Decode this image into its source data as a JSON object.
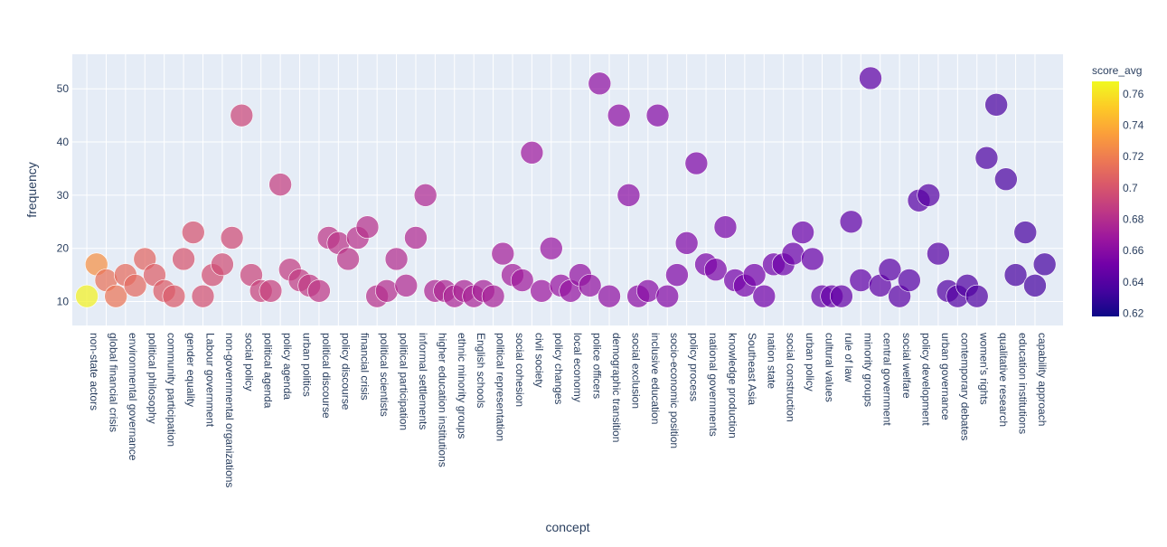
{
  "chart_data": {
    "type": "scatter",
    "xlabel": "concept",
    "ylabel": "frequency",
    "ylim": [
      5.5,
      56.5
    ],
    "yticks": [
      10,
      20,
      30,
      40,
      50
    ],
    "grid": true,
    "colorbar": {
      "title": "score_avg",
      "range": [
        0.618,
        0.768
      ],
      "ticks": [
        0.62,
        0.64,
        0.66,
        0.68,
        0.7,
        0.72,
        0.74,
        0.76
      ],
      "tick_labels": [
        "0.62",
        "0.64",
        "0.66",
        "0.68",
        "0.7",
        "0.72",
        "0.74",
        "0.76"
      ],
      "colorscale": [
        "#0d0887",
        "#46039f",
        "#7201a8",
        "#9c179e",
        "#bd3786",
        "#d8576b",
        "#ed7953",
        "#fb9f3a",
        "#fdca26",
        "#f0f921"
      ]
    },
    "categories": [
      "non-state actors",
      "global financial crisis",
      "environmental governance",
      "political philosophy",
      "community participation",
      "gender equality",
      "Labour government",
      "non-governmental organizations",
      "social policy",
      "political agenda",
      "policy agenda",
      "urban politics",
      "political discourse",
      "policy discourse",
      "financial crisis",
      "political scientists",
      "political participation",
      "informal settlements",
      "higher education institutions",
      "ethnic minority groups",
      "English schools",
      "political representation",
      "social cohesion",
      "civil society",
      "policy changes",
      "local economy",
      "police officers",
      "demographic transition",
      "social exclusion",
      "inclusive education",
      "socio-economic position",
      "policy process",
      "national governments",
      "knowledge production",
      "Southeast Asia",
      "nation state",
      "social construction",
      "urban policy",
      "cultural values",
      "rule of law",
      "minority groups",
      "central government",
      "social welfare",
      "policy development",
      "urban governance",
      "contemporary debates",
      "women's rights",
      "qualitative research",
      "education institutions",
      "capability approach"
    ],
    "points": [
      {
        "x": 0.0,
        "y": 11,
        "c": 0.765
      },
      {
        "x": 0.5,
        "y": 17,
        "c": 0.728
      },
      {
        "x": 1.0,
        "y": 14,
        "c": 0.714
      },
      {
        "x": 1.5,
        "y": 11,
        "c": 0.716
      },
      {
        "x": 2.0,
        "y": 15,
        "c": 0.711
      },
      {
        "x": 2.5,
        "y": 13,
        "c": 0.71
      },
      {
        "x": 3.0,
        "y": 18,
        "c": 0.708
      },
      {
        "x": 3.5,
        "y": 15,
        "c": 0.705
      },
      {
        "x": 4.0,
        "y": 12,
        "c": 0.704
      },
      {
        "x": 4.5,
        "y": 11,
        "c": 0.703
      },
      {
        "x": 5.0,
        "y": 18,
        "c": 0.7
      },
      {
        "x": 5.5,
        "y": 23,
        "c": 0.699
      },
      {
        "x": 6.0,
        "y": 11,
        "c": 0.698
      },
      {
        "x": 6.5,
        "y": 15,
        "c": 0.697
      },
      {
        "x": 7.0,
        "y": 17,
        "c": 0.696
      },
      {
        "x": 7.5,
        "y": 22,
        "c": 0.695
      },
      {
        "x": 8.0,
        "y": 45,
        "c": 0.693
      },
      {
        "x": 8.5,
        "y": 15,
        "c": 0.692
      },
      {
        "x": 9.0,
        "y": 12,
        "c": 0.691
      },
      {
        "x": 9.5,
        "y": 12,
        "c": 0.69
      },
      {
        "x": 10.0,
        "y": 32,
        "c": 0.689
      },
      {
        "x": 10.5,
        "y": 16,
        "c": 0.688
      },
      {
        "x": 11.0,
        "y": 14,
        "c": 0.687
      },
      {
        "x": 11.5,
        "y": 13,
        "c": 0.686
      },
      {
        "x": 12.0,
        "y": 12,
        "c": 0.685
      },
      {
        "x": 12.5,
        "y": 22,
        "c": 0.684
      },
      {
        "x": 13.0,
        "y": 21,
        "c": 0.683
      },
      {
        "x": 13.5,
        "y": 18,
        "c": 0.683
      },
      {
        "x": 14.0,
        "y": 22,
        "c": 0.682
      },
      {
        "x": 14.5,
        "y": 24,
        "c": 0.681
      },
      {
        "x": 15.0,
        "y": 11,
        "c": 0.681
      },
      {
        "x": 15.5,
        "y": 12,
        "c": 0.68
      },
      {
        "x": 16.0,
        "y": 18,
        "c": 0.679
      },
      {
        "x": 16.5,
        "y": 13,
        "c": 0.678
      },
      {
        "x": 17.0,
        "y": 22,
        "c": 0.678
      },
      {
        "x": 17.5,
        "y": 30,
        "c": 0.677
      },
      {
        "x": 18.0,
        "y": 12,
        "c": 0.676
      },
      {
        "x": 18.5,
        "y": 12,
        "c": 0.676
      },
      {
        "x": 19.0,
        "y": 11,
        "c": 0.675
      },
      {
        "x": 19.5,
        "y": 12,
        "c": 0.675
      },
      {
        "x": 20.0,
        "y": 11,
        "c": 0.674
      },
      {
        "x": 20.5,
        "y": 12,
        "c": 0.673
      },
      {
        "x": 21.0,
        "y": 11,
        "c": 0.673
      },
      {
        "x": 21.5,
        "y": 19,
        "c": 0.672
      },
      {
        "x": 22.0,
        "y": 15,
        "c": 0.671
      },
      {
        "x": 22.5,
        "y": 14,
        "c": 0.67
      },
      {
        "x": 23.0,
        "y": 38,
        "c": 0.669
      },
      {
        "x": 23.5,
        "y": 12,
        "c": 0.668
      },
      {
        "x": 24.0,
        "y": 20,
        "c": 0.667
      },
      {
        "x": 24.5,
        "y": 13,
        "c": 0.666
      },
      {
        "x": 25.0,
        "y": 12,
        "c": 0.665
      },
      {
        "x": 25.5,
        "y": 15,
        "c": 0.664
      },
      {
        "x": 26.0,
        "y": 13,
        "c": 0.664
      },
      {
        "x": 26.5,
        "y": 51,
        "c": 0.663
      },
      {
        "x": 27.0,
        "y": 11,
        "c": 0.663
      },
      {
        "x": 27.5,
        "y": 45,
        "c": 0.662
      },
      {
        "x": 28.0,
        "y": 30,
        "c": 0.661
      },
      {
        "x": 28.5,
        "y": 11,
        "c": 0.661
      },
      {
        "x": 29.0,
        "y": 12,
        "c": 0.66
      },
      {
        "x": 29.5,
        "y": 45,
        "c": 0.659
      },
      {
        "x": 30.0,
        "y": 11,
        "c": 0.658
      },
      {
        "x": 30.5,
        "y": 15,
        "c": 0.657
      },
      {
        "x": 31.0,
        "y": 21,
        "c": 0.657
      },
      {
        "x": 31.5,
        "y": 36,
        "c": 0.656
      },
      {
        "x": 32.0,
        "y": 17,
        "c": 0.655
      },
      {
        "x": 32.5,
        "y": 16,
        "c": 0.655
      },
      {
        "x": 33.0,
        "y": 24,
        "c": 0.654
      },
      {
        "x": 33.5,
        "y": 14,
        "c": 0.653
      },
      {
        "x": 34.0,
        "y": 13,
        "c": 0.653
      },
      {
        "x": 34.5,
        "y": 15,
        "c": 0.652
      },
      {
        "x": 35.0,
        "y": 11,
        "c": 0.651
      },
      {
        "x": 35.5,
        "y": 17,
        "c": 0.651
      },
      {
        "x": 36.0,
        "y": 17,
        "c": 0.65
      },
      {
        "x": 36.5,
        "y": 19,
        "c": 0.649
      },
      {
        "x": 37.0,
        "y": 23,
        "c": 0.649
      },
      {
        "x": 37.5,
        "y": 18,
        "c": 0.648
      },
      {
        "x": 38.0,
        "y": 11,
        "c": 0.647
      },
      {
        "x": 38.5,
        "y": 11,
        "c": 0.647
      },
      {
        "x": 39.0,
        "y": 11,
        "c": 0.646
      },
      {
        "x": 39.5,
        "y": 25,
        "c": 0.645
      },
      {
        "x": 40.0,
        "y": 14,
        "c": 0.645
      },
      {
        "x": 40.5,
        "y": 52,
        "c": 0.644
      },
      {
        "x": 41.0,
        "y": 13,
        "c": 0.644
      },
      {
        "x": 41.5,
        "y": 16,
        "c": 0.643
      },
      {
        "x": 42.0,
        "y": 11,
        "c": 0.643
      },
      {
        "x": 42.5,
        "y": 14,
        "c": 0.642
      },
      {
        "x": 43.0,
        "y": 29,
        "c": 0.642
      },
      {
        "x": 43.5,
        "y": 30,
        "c": 0.641
      },
      {
        "x": 44.0,
        "y": 19,
        "c": 0.641
      },
      {
        "x": 44.5,
        "y": 12,
        "c": 0.64
      },
      {
        "x": 45.0,
        "y": 11,
        "c": 0.64
      },
      {
        "x": 45.5,
        "y": 13,
        "c": 0.639
      },
      {
        "x": 46.0,
        "y": 11,
        "c": 0.639
      },
      {
        "x": 46.5,
        "y": 37,
        "c": 0.638
      },
      {
        "x": 47.0,
        "y": 47,
        "c": 0.637
      },
      {
        "x": 47.5,
        "y": 33,
        "c": 0.637
      },
      {
        "x": 48.0,
        "y": 15,
        "c": 0.636
      },
      {
        "x": 48.5,
        "y": 23,
        "c": 0.636
      },
      {
        "x": 49.0,
        "y": 13,
        "c": 0.635
      },
      {
        "x": 49.5,
        "y": 17,
        "c": 0.635
      }
    ]
  }
}
